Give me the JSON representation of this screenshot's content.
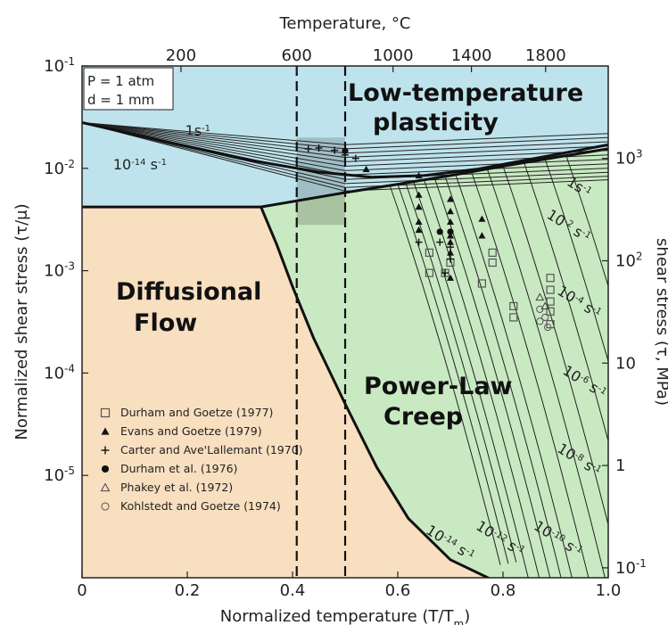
{
  "chart_data": {
    "type": "deformation_mechanism_map",
    "x_axis": {
      "label": "Normalized temperature (T/T",
      "label_sub": "m",
      "label_end": ")",
      "range": [
        0,
        1.0
      ],
      "ticks": [
        0,
        0.2,
        0.4,
        0.6,
        0.8,
        1.0
      ],
      "tick_labels": [
        "0",
        "0.2",
        "0.4",
        "0.6",
        "0.8",
        "1.0"
      ]
    },
    "top_axis": {
      "label": "Temperature, °C",
      "ticks": [
        {
          "t": 0.188,
          "label": "200"
        },
        {
          "t": 0.408,
          "label": "600"
        },
        {
          "t": 0.591,
          "label": "1000"
        },
        {
          "t": 0.74,
          "label": "1400"
        },
        {
          "t": 0.881,
          "label": "1800"
        }
      ]
    },
    "y_axis": {
      "label": "Normalized shear stress (τ/μ)",
      "scale": "log",
      "range": [
        1e-06,
        0.1
      ],
      "ticks": [
        {
          "value": 0.1,
          "base": "10",
          "exp": "-1"
        },
        {
          "value": 0.01,
          "base": "10",
          "exp": "-2"
        },
        {
          "value": 0.001,
          "base": "10",
          "exp": "-3"
        },
        {
          "value": 0.0001,
          "base": "10",
          "exp": "-4"
        },
        {
          "value": 1e-05,
          "base": "10",
          "exp": "-5"
        }
      ]
    },
    "right_axis": {
      "label": "shear stress (τ, MPa)",
      "ticks": [
        {
          "y": 0.0125,
          "base": "10",
          "exp": "3"
        },
        {
          "y": 0.00125,
          "base": "10",
          "exp": "2"
        },
        {
          "y": 0.000125,
          "label": "10"
        },
        {
          "y": 1.25e-05,
          "label": "1"
        },
        {
          "y": 1.25e-06,
          "base": "10",
          "exp": "-1"
        }
      ]
    },
    "conditions": [
      "P = 1 atm",
      "d = 1 mm"
    ],
    "regions": [
      {
        "name": "Low-temperature",
        "name2": "plasticity",
        "color": "#bfe3ec"
      },
      {
        "name": "Diffusional",
        "name2": "Flow",
        "color": "#f8dfc0"
      },
      {
        "name": "Power-Law",
        "name2": "Creep",
        "color": "#c9e9c2"
      }
    ],
    "boundaries": {
      "lowT_upper": [
        [
          0,
          0.028
        ],
        [
          0.3,
          0.0125
        ],
        [
          0.45,
          0.0092
        ],
        [
          0.55,
          0.0082
        ],
        [
          0.65,
          0.0085
        ],
        [
          0.75,
          0.0098
        ],
        [
          0.85,
          0.0122
        ],
        [
          1.0,
          0.017
        ]
      ],
      "lowT_lower": [
        [
          0,
          0.0042
        ],
        [
          0.34,
          0.0042
        ],
        [
          0.5,
          0.0058
        ],
        [
          0.6,
          0.007
        ],
        [
          0.7,
          0.0085
        ],
        [
          0.8,
          0.0105
        ],
        [
          0.9,
          0.0128
        ],
        [
          1.0,
          0.0155
        ]
      ],
      "diffusion_powerlaw": [
        [
          0.34,
          0.0042
        ],
        [
          0.37,
          0.0018
        ],
        [
          0.4,
          0.0007
        ],
        [
          0.44,
          0.00022
        ],
        [
          0.5,
          5e-05
        ],
        [
          0.56,
          1.2e-05
        ],
        [
          0.62,
          3.8e-06
        ],
        [
          0.7,
          1.5e-06
        ],
        [
          0.8,
          8.5e-07
        ],
        [
          0.88,
          6.3e-07
        ]
      ]
    },
    "fan_lines": {
      "y_start": 0.028,
      "y_end": [
        0.017,
        0.0155,
        0.0141,
        0.0128,
        0.0116,
        0.0105,
        0.0095,
        0.0086,
        0.0078,
        0.0071,
        0.0065,
        0.006
      ],
      "x_end": 0.5
    },
    "strain_rate_contours": {
      "x_start": [
        0.92,
        0.88,
        0.84,
        0.8,
        0.77,
        0.74,
        0.71,
        0.69,
        0.67,
        0.65,
        0.63,
        0.615,
        0.6,
        0.585
      ],
      "slope_decades_per_unit": 27
    },
    "rate_labels": [
      {
        "base": "1s",
        "exp": "-1",
        "x": 0.22,
        "y": 0.021
      },
      {
        "base": "10",
        "exp": "-14",
        "suffix": "s",
        "exp2": "-1",
        "x": 0.11,
        "y": 0.0098
      },
      {
        "base": "1s",
        "exp": "-1",
        "x": 0.94,
        "y": 0.006
      },
      {
        "base": "10",
        "exp": "-2",
        "suffix": "s",
        "exp2": "-1",
        "x": 0.92,
        "y": 0.0025
      },
      {
        "base": "10",
        "exp": "-4",
        "suffix": "s",
        "exp2": "-1",
        "x": 0.94,
        "y": 0.00045
      },
      {
        "base": "10",
        "exp": "-6",
        "suffix": "s",
        "exp2": "-1",
        "x": 0.95,
        "y": 7.5e-05
      },
      {
        "base": "10",
        "exp": "-8",
        "suffix": "s",
        "exp2": "-1",
        "x": 0.94,
        "y": 1.3e-05
      },
      {
        "base": "10",
        "exp": "-10",
        "suffix": "s",
        "exp2": "-1",
        "x": 0.9,
        "y": 2.2e-06
      },
      {
        "base": "10",
        "exp": "-12",
        "suffix": "s",
        "exp2": "-1",
        "x": 0.79,
        "y": 2.2e-06
      },
      {
        "base": "10",
        "exp": "-14",
        "suffix": "s",
        "exp2": "-1",
        "x": 0.695,
        "y": 2e-06
      }
    ],
    "vertical_lines": [
      0.408,
      0.5
    ],
    "legend": [
      {
        "symbol": "open-square",
        "label": "Durham and Goetze (1977)"
      },
      {
        "symbol": "filled-triangle",
        "label": "Evans and Goetze (1979)"
      },
      {
        "symbol": "plus",
        "label": "Carter and Ave'Lallemant (1970)"
      },
      {
        "symbol": "filled-circle",
        "label": "Durham et al. (1976)"
      },
      {
        "symbol": "open-triangle",
        "label": "Phakey et al. (1972)"
      },
      {
        "symbol": "open-circle",
        "label": "Kohlstedt and Goetze (1974)"
      }
    ],
    "series": [
      {
        "name": "Durham and Goetze (1977)",
        "symbol": "open-square",
        "points": [
          [
            0.66,
            0.0015
          ],
          [
            0.66,
            0.00095
          ],
          [
            0.69,
            0.00095
          ],
          [
            0.7,
            0.0012
          ],
          [
            0.76,
            0.00075
          ],
          [
            0.78,
            0.0015
          ],
          [
            0.78,
            0.0012
          ],
          [
            0.82,
            0.00045
          ],
          [
            0.82,
            0.00035
          ],
          [
            0.89,
            0.00085
          ],
          [
            0.89,
            0.00065
          ],
          [
            0.89,
            0.0005
          ],
          [
            0.89,
            0.0004
          ],
          [
            0.89,
            0.0003
          ]
        ]
      },
      {
        "name": "Evans and Goetze (1979)",
        "symbol": "filled-triangle",
        "points": [
          [
            0.54,
            0.0098
          ],
          [
            0.64,
            0.0085
          ],
          [
            0.64,
            0.0055
          ],
          [
            0.64,
            0.0042
          ],
          [
            0.64,
            0.003
          ],
          [
            0.64,
            0.0025
          ],
          [
            0.7,
            0.005
          ],
          [
            0.7,
            0.0038
          ],
          [
            0.7,
            0.003
          ],
          [
            0.7,
            0.0022
          ],
          [
            0.7,
            0.0019
          ],
          [
            0.7,
            0.0015
          ],
          [
            0.7,
            0.00085
          ],
          [
            0.76,
            0.0032
          ],
          [
            0.76,
            0.0022
          ]
        ]
      },
      {
        "name": "Carter and Ave'Lallemant (1970)",
        "symbol": "plus",
        "points": [
          [
            0.43,
            0.0155
          ],
          [
            0.45,
            0.0158
          ],
          [
            0.48,
            0.015
          ],
          [
            0.5,
            0.0135
          ],
          [
            0.52,
            0.0125
          ],
          [
            0.64,
            0.0019
          ],
          [
            0.68,
            0.0019
          ],
          [
            0.7,
            0.0017
          ],
          [
            0.7,
            0.0013
          ],
          [
            0.69,
            0.00095
          ]
        ]
      },
      {
        "name": "Durham et al. (1976)",
        "symbol": "filled-circle",
        "points": [
          [
            0.5,
            0.0148
          ],
          [
            0.68,
            0.0024
          ],
          [
            0.7,
            0.0024
          ]
        ]
      },
      {
        "name": "Phakey et al. (1972)",
        "symbol": "open-triangle",
        "points": [
          [
            0.87,
            0.00055
          ],
          [
            0.88,
            0.00045
          ]
        ]
      },
      {
        "name": "Kohlstedt and Goetze (1974)",
        "symbol": "open-circle",
        "points": [
          [
            0.87,
            0.00042
          ],
          [
            0.88,
            0.00035
          ],
          [
            0.87,
            0.00032
          ],
          [
            0.885,
            0.00028
          ]
        ]
      }
    ]
  }
}
